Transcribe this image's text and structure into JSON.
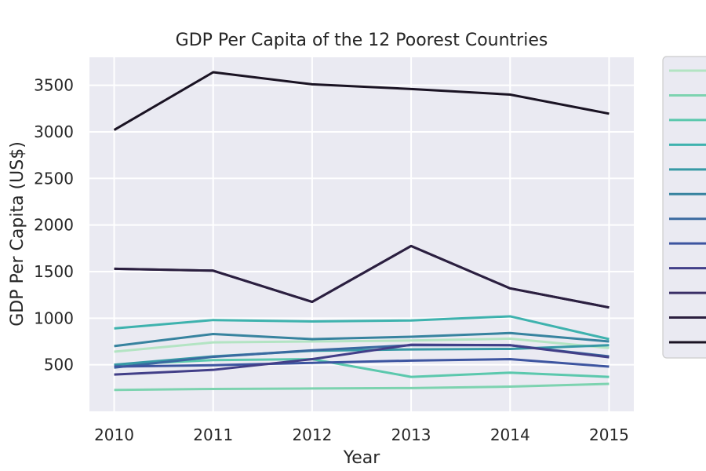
{
  "chart_data": {
    "type": "line",
    "title": "GDP Per Capita of the 12 Poorest Countries",
    "xlabel": "Year",
    "ylabel": "GDP Per Capita (US$)",
    "x": [
      2010,
      2011,
      2012,
      2013,
      2014,
      2015
    ],
    "xlim": [
      2009.75,
      2015.25
    ],
    "ylim": [
      0,
      3800
    ],
    "yticks": [
      500,
      1000,
      1500,
      2000,
      2500,
      3000,
      3500
    ],
    "grid": true,
    "legend": "right-outside",
    "series": [
      {
        "color": "#b3e4c3",
        "values": [
          640,
          740,
          750,
          760,
          780,
          680
        ]
      },
      {
        "color": "#7dd3b0",
        "values": [
          230,
          240,
          245,
          250,
          265,
          295
        ]
      },
      {
        "color": "#5bc8ad",
        "values": [
          500,
          550,
          560,
          370,
          415,
          370
        ]
      },
      {
        "color": "#3eb2ae",
        "values": [
          890,
          980,
          965,
          975,
          1020,
          775
        ]
      },
      {
        "color": "#3799a5",
        "values": [
          500,
          590,
          650,
          665,
          670,
          710
        ]
      },
      {
        "color": "#37839f",
        "values": [
          700,
          830,
          775,
          800,
          840,
          750
        ]
      },
      {
        "color": "#3a6aa0",
        "values": [
          470,
          585,
          655,
          710,
          710,
          590
        ]
      },
      {
        "color": "#3d55a0",
        "values": [
          480,
          495,
          520,
          545,
          560,
          480
        ]
      },
      {
        "color": "#423f88",
        "values": [
          395,
          445,
          560,
          715,
          710,
          580
        ]
      },
      {
        "color": "#3a2f66",
        "values": [
          1530,
          1510,
          1175,
          1775,
          1320,
          1115
        ]
      },
      {
        "color": "#2b1f3f",
        "values": [
          1530,
          1510,
          1175,
          1775,
          1320,
          1115
        ]
      },
      {
        "color": "#1a1323",
        "values": [
          3020,
          3640,
          3510,
          3460,
          3400,
          3195
        ]
      }
    ]
  }
}
